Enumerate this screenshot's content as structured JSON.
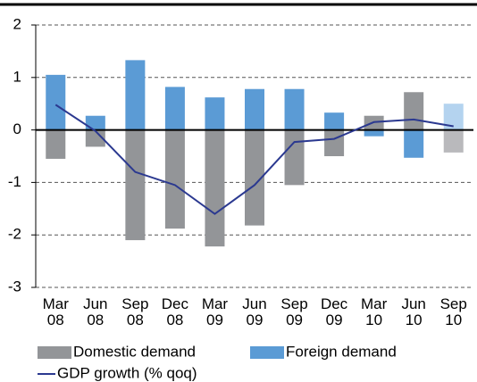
{
  "chart_data": {
    "type": "bar",
    "categories": [
      "Mar 08",
      "Jun 08",
      "Sep 08",
      "Dec 08",
      "Mar 09",
      "Jun 09",
      "Sep 09",
      "Dec 09",
      "Mar 10",
      "Jun 10",
      "Sep 10"
    ],
    "series": [
      {
        "name": "Domestic demand",
        "type": "bar",
        "color": "#939598",
        "colors": [
          "#939598",
          "#939598",
          "#939598",
          "#939598",
          "#939598",
          "#939598",
          "#939598",
          "#939598",
          "#939598",
          "#939598",
          "#b9b9bc"
        ],
        "values": [
          -0.55,
          -0.32,
          -2.1,
          -1.88,
          -2.22,
          -1.82,
          -1.05,
          -0.5,
          0.27,
          0.72,
          -0.43
        ]
      },
      {
        "name": "Foreign demand",
        "type": "bar",
        "color": "#5b9bd5",
        "colors": [
          "#5b9bd5",
          "#5b9bd5",
          "#5b9bd5",
          "#5b9bd5",
          "#5b9bd5",
          "#5b9bd5",
          "#5b9bd5",
          "#5b9bd5",
          "#5b9bd5",
          "#5b9bd5",
          "#b4d3ef"
        ],
        "values": [
          1.05,
          0.27,
          1.33,
          0.82,
          0.62,
          0.78,
          0.78,
          0.33,
          -0.12,
          -0.53,
          0.5
        ]
      },
      {
        "name": "GDP growth (% qoq)",
        "type": "line",
        "color": "#2b3990",
        "values": [
          0.48,
          -0.02,
          -0.8,
          -1.05,
          -1.6,
          -1.05,
          -0.23,
          -0.17,
          0.15,
          0.2,
          0.07
        ]
      }
    ],
    "ylim": [
      -3,
      2
    ],
    "yticks": [
      -3,
      -2,
      -1,
      0,
      1,
      2
    ],
    "grid": true
  }
}
